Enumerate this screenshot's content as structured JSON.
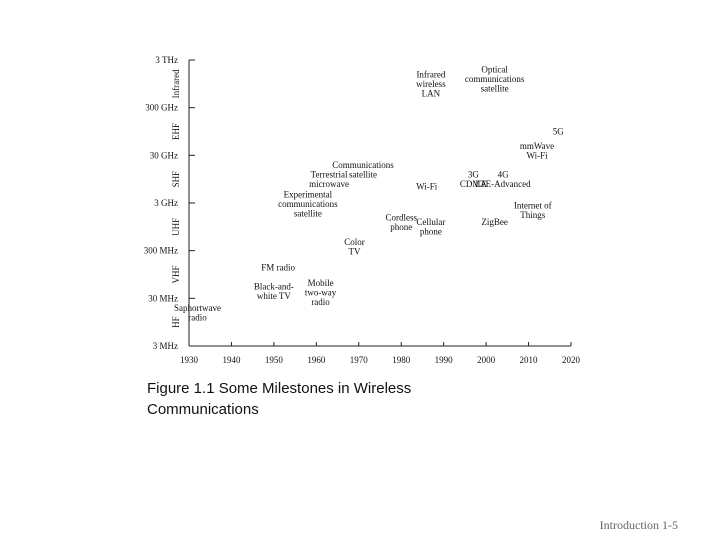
{
  "chart_data": {
    "type": "scatter",
    "title": "",
    "xlabel": "",
    "ylabel": "",
    "xlim": [
      1930,
      2020
    ],
    "x_ticks": [
      "1930",
      "1940",
      "1950",
      "1960",
      "1970",
      "1980",
      "1990",
      "2000",
      "2010",
      "2020"
    ],
    "y_ticks": [
      "3 THz",
      "300 GHz",
      "30 GHz",
      "3 GHz",
      "300 MHz",
      "30 MHz",
      "3 MHz"
    ],
    "bands": [
      "Infrared",
      "EHF",
      "SHF",
      "UHF",
      "VHF",
      "HF"
    ],
    "milestones": [
      {
        "lines": [
          "Saphortwave",
          "radio"
        ],
        "year": 1932,
        "decade": 0.7
      },
      {
        "lines": [
          "Black-and-",
          "white TV"
        ],
        "year": 1950,
        "decade": 1.15
      },
      {
        "lines": [
          "Mobile",
          "two-way",
          "radio"
        ],
        "year": 1961,
        "decade": 1.12
      },
      {
        "lines": [
          "FM radio"
        ],
        "year": 1951,
        "decade": 1.65
      },
      {
        "lines": [
          "Color",
          "TV"
        ],
        "year": 1969,
        "decade": 2.08
      },
      {
        "lines": [
          "Experimental",
          "communications",
          "satellite"
        ],
        "year": 1958,
        "decade": 2.98
      },
      {
        "lines": [
          "Terrestrial",
          "microwave"
        ],
        "year": 1963,
        "decade": 3.5
      },
      {
        "lines": [
          "Communications",
          "satellite"
        ],
        "year": 1971,
        "decade": 3.7
      },
      {
        "lines": [
          "Cordless",
          "phone"
        ],
        "year": 1980,
        "decade": 2.6
      },
      {
        "lines": [
          "Cellular",
          "phone"
        ],
        "year": 1987,
        "decade": 2.5
      },
      {
        "lines": [
          "Wi-Fi"
        ],
        "year": 1986,
        "decade": 3.35
      },
      {
        "lines": [
          "3G",
          "CDMA"
        ],
        "year": 1997,
        "decade": 3.5
      },
      {
        "lines": [
          "4G",
          "LTE-Advanced"
        ],
        "year": 2004,
        "decade": 3.5
      },
      {
        "lines": [
          "ZigBee"
        ],
        "year": 2002,
        "decade": 2.6
      },
      {
        "lines": [
          "Internet of",
          "Things"
        ],
        "year": 2011,
        "decade": 2.85
      },
      {
        "lines": [
          "Infrared",
          "wireless",
          "LAN"
        ],
        "year": 1987,
        "decade": 5.5
      },
      {
        "lines": [
          "Optical",
          "communications",
          "satellite"
        ],
        "year": 2002,
        "decade": 5.6
      },
      {
        "lines": [
          "mmWave",
          "Wi-Fi"
        ],
        "year": 2012,
        "decade": 4.1
      },
      {
        "lines": [
          "5G"
        ],
        "year": 2017,
        "decade": 4.5
      }
    ]
  },
  "caption": {
    "line1": "Figure 1.1 Some Milestones in Wireless",
    "line2": "Communications"
  },
  "footer": "Introduction 1-5"
}
